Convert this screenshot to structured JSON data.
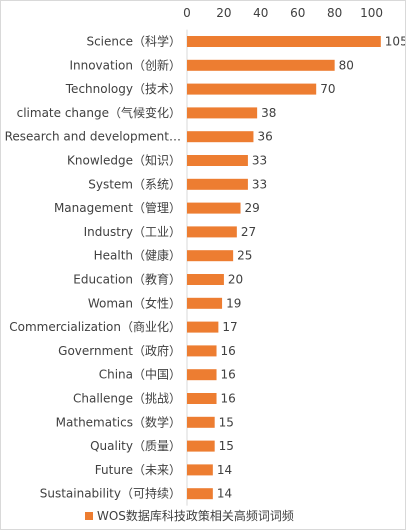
{
  "chart_data": {
    "type": "bar",
    "orientation": "horizontal",
    "categories": [
      "Science（科学）",
      "Innovation（创新）",
      "Technology（技术）",
      "climate change（气候变化）",
      "Research and development…",
      "Knowledge（知识）",
      "System（系统）",
      "Management（管理）",
      "Industry（工业）",
      "Health（健康）",
      "Education（教育）",
      "Woman（女性）",
      "Commercialization（商业化）",
      "Government（政府）",
      "China（中国）",
      "Challenge（挑战）",
      "Mathematics（数学）",
      "Quality（质量）",
      "Future（未来）",
      "Sustainability（可持续）"
    ],
    "series": [
      {
        "name": "WOS数据库科技政策相关高频词词频",
        "values": [
          105,
          80,
          70,
          38,
          36,
          33,
          33,
          29,
          27,
          25,
          20,
          19,
          17,
          16,
          16,
          16,
          15,
          15,
          14,
          14
        ]
      }
    ],
    "xticks": [
      "0",
      "20",
      "40",
      "60",
      "80",
      "100"
    ],
    "xlim": [
      0,
      105
    ],
    "color": "#ED7D31",
    "grid": false,
    "legend": "bottom"
  }
}
